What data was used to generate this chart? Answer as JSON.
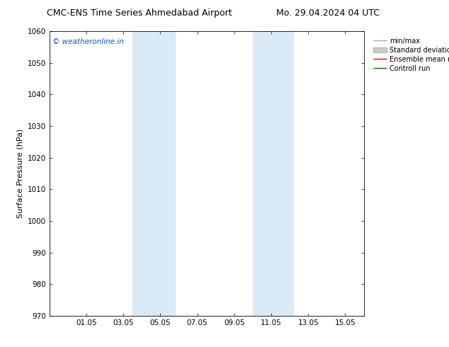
{
  "title_left": "CMC-ENS Time Series Ahmedabad Airport",
  "title_right": "Mo. 29.04.2024 04 UTC",
  "ylabel": "Surface Pressure (hPa)",
  "ylim": [
    970,
    1060
  ],
  "yticks": [
    970,
    980,
    990,
    1000,
    1010,
    1020,
    1030,
    1040,
    1050,
    1060
  ],
  "xtick_labels": [
    "01.05",
    "03.05",
    "05.05",
    "07.05",
    "09.05",
    "11.05",
    "13.05",
    "15.05"
  ],
  "xtick_positions": [
    2,
    4,
    6,
    8,
    10,
    12,
    14,
    16
  ],
  "xlim": [
    0,
    17
  ],
  "shade_bands": [
    {
      "xmin": 4.5,
      "xmax": 5.2,
      "sub": true
    },
    {
      "xmin": 5.2,
      "xmax": 6.8,
      "sub": false
    },
    {
      "xmin": 11.0,
      "xmax": 11.8,
      "sub": false
    },
    {
      "xmin": 11.8,
      "xmax": 13.2,
      "sub": true
    }
  ],
  "shade_color": "#daeaf7",
  "watermark": "© weatheronline.in",
  "watermark_color": "#1155cc",
  "legend_entries": [
    {
      "label": "min/max",
      "color": "#aaaaaa",
      "style": "line"
    },
    {
      "label": "Standard deviation",
      "color": "#cccccc",
      "style": "rect"
    },
    {
      "label": "Ensemble mean run",
      "color": "#ff0000",
      "style": "line"
    },
    {
      "label": "Controll run",
      "color": "#007700",
      "style": "line"
    }
  ],
  "bg_color": "#ffffff",
  "title_fontsize": 9,
  "axis_label_fontsize": 8,
  "tick_fontsize": 7.5,
  "legend_fontsize": 7
}
